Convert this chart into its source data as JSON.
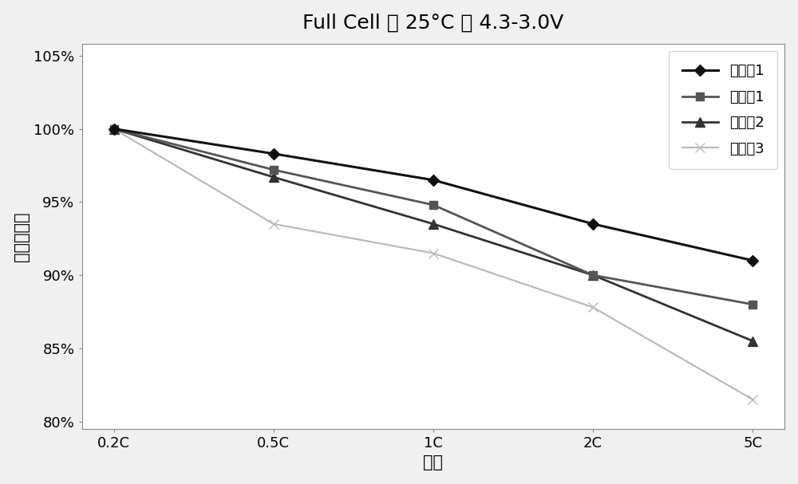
{
  "title": "Full Cell ， 25°C ， 4.3-3.0V",
  "xlabel": "倍率",
  "ylabel": "容量保持率",
  "x_labels": [
    "0.2C",
    "0.5C",
    "1C",
    "2C",
    "5C"
  ],
  "x_values": [
    0,
    1,
    2,
    3,
    4
  ],
  "series": [
    {
      "name": "实施例1",
      "values": [
        1.0,
        0.983,
        0.965,
        0.935,
        0.91
      ],
      "color": "#111111",
      "marker": "D",
      "marker_size": 7,
      "linewidth": 2.2,
      "zorder": 5
    },
    {
      "name": "对比例1",
      "values": [
        1.0,
        0.972,
        0.948,
        0.9,
        0.88
      ],
      "color": "#555555",
      "marker": "s",
      "marker_size": 7,
      "linewidth": 2.0,
      "zorder": 4
    },
    {
      "name": "对比例2",
      "values": [
        1.0,
        0.967,
        0.935,
        0.9,
        0.855
      ],
      "color": "#333333",
      "marker": "^",
      "marker_size": 8,
      "linewidth": 2.0,
      "zorder": 3
    },
    {
      "name": "对比例3",
      "values": [
        1.0,
        0.935,
        0.915,
        0.878,
        0.815
      ],
      "color": "#bbbbbb",
      "marker": "x",
      "marker_size": 9,
      "linewidth": 1.6,
      "zorder": 2
    }
  ],
  "ylim": [
    0.795,
    1.058
  ],
  "yticks": [
    0.8,
    0.85,
    0.9,
    0.95,
    1.0,
    1.05
  ],
  "ytick_labels": [
    "80%",
    "85%",
    "90%",
    "95%",
    "100%",
    "105%"
  ],
  "background_color": "#f0f0f0",
  "plot_bg_color": "#ffffff",
  "border_color": "#888888",
  "title_fontsize": 18,
  "axis_label_fontsize": 15,
  "tick_fontsize": 13,
  "legend_fontsize": 13
}
